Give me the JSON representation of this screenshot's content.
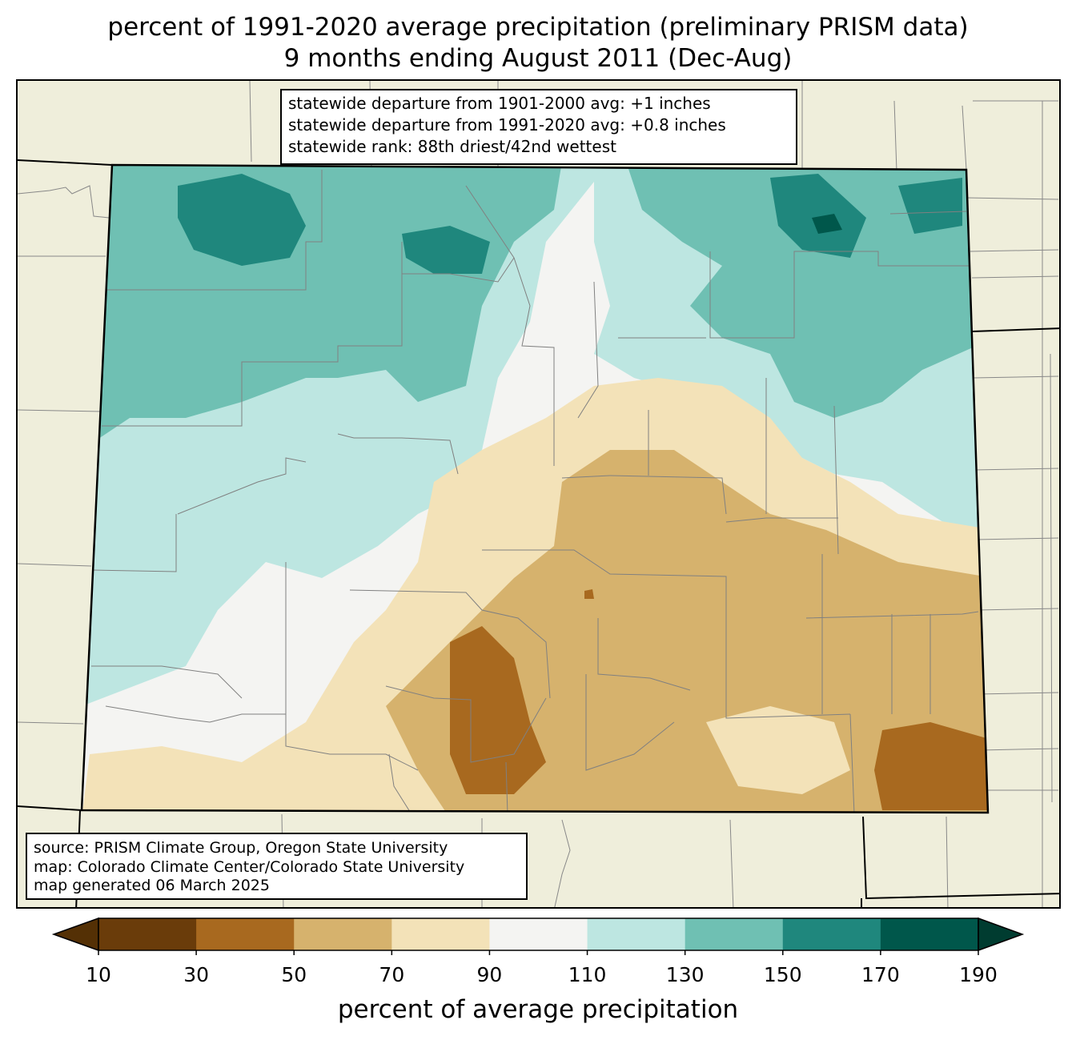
{
  "title": {
    "line1": "percent of 1991-2020 average precipitation (preliminary PRISM data)",
    "line2": "9 months ending August 2011 (Dec-Aug)"
  },
  "stats": {
    "line1": "statewide departure from 1901-2000 avg: +1 inches",
    "line2": "statewide departure from 1991-2020 avg: +0.8 inches",
    "line3": "statewide rank: 88th driest/42nd wettest"
  },
  "source": {
    "line1": "source: PRISM Climate Group, Oregon State University",
    "line2": "map: Colorado Climate Center/Colorado State University",
    "line3": "map generated 06 March 2025"
  },
  "colorbar": {
    "label": "percent of average precipitation",
    "ticks": [
      "10",
      "30",
      "50",
      "70",
      "90",
      "110",
      "130",
      "150",
      "170",
      "190"
    ],
    "colors": [
      "#6a3c0a",
      "#a8691f",
      "#d6b26d",
      "#f3e2b8",
      "#f4f4f2",
      "#bde6e1",
      "#6fc0b3",
      "#1f877d",
      "#00574b"
    ],
    "under_color": "#543005",
    "over_color": "#003c30"
  },
  "map_colors": {
    "background": "#efeedb",
    "county_lines": "#808080",
    "state_border": "#000000"
  }
}
